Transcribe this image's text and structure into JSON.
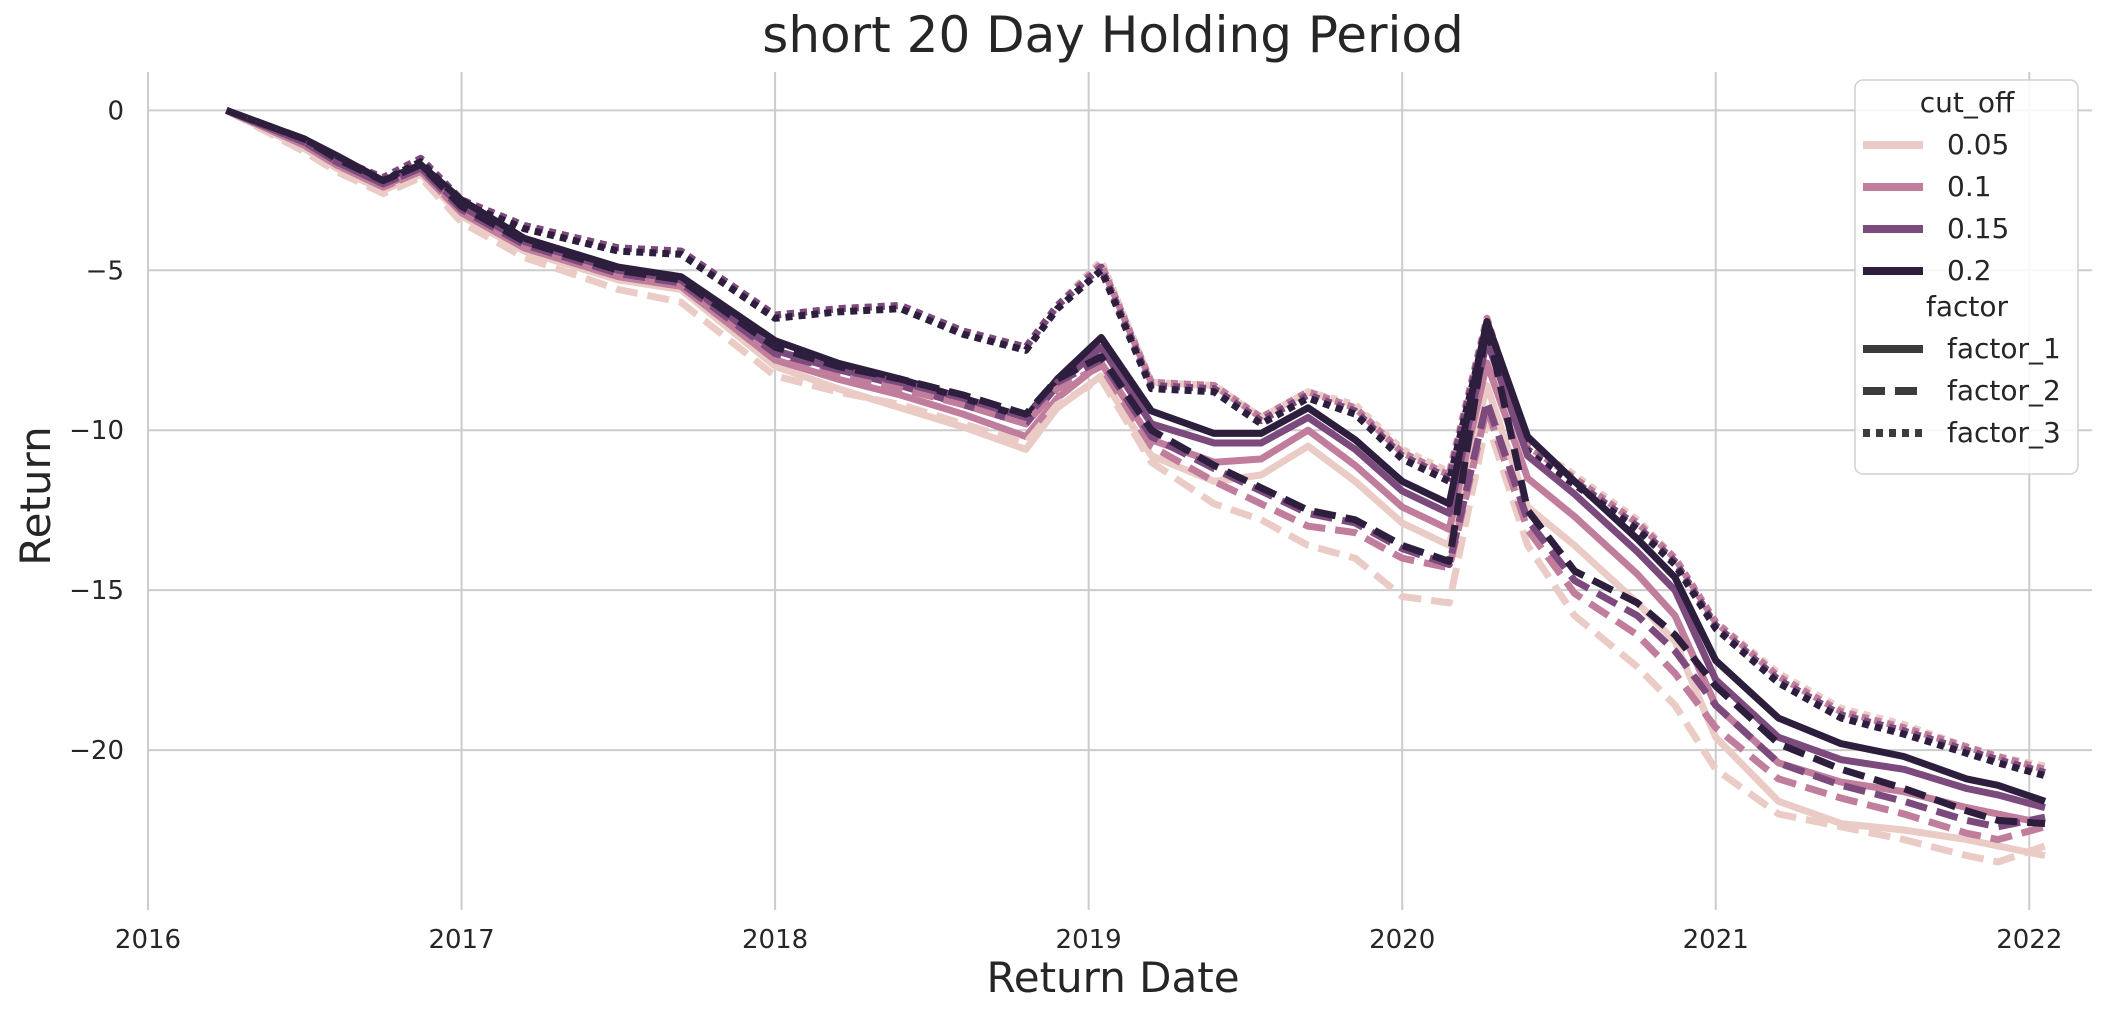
{
  "chart_data": {
    "type": "line",
    "title": "short 20 Day Holding Period",
    "xlabel": "Return Date",
    "ylabel": "Return",
    "x_ticks": [
      "2016",
      "2017",
      "2018",
      "2019",
      "2020",
      "2021",
      "2022"
    ],
    "y_ticks": [
      0,
      -5,
      -10,
      -15,
      -20
    ],
    "y_tick_labels": [
      "0",
      "−5",
      "−10",
      "−15",
      "−20"
    ],
    "xlim": [
      2016.0,
      2022.2
    ],
    "ylim": [
      -25.0,
      1.2
    ],
    "grid": true,
    "legend_position": "top-right",
    "hue": {
      "title": "cut_off",
      "levels": [
        "0.05",
        "0.1",
        "0.15",
        "0.2"
      ],
      "colors": [
        "#eacbc5",
        "#c07d9c",
        "#7c4a7d",
        "#2d1e3e"
      ]
    },
    "style": {
      "title": "factor",
      "levels": [
        "factor_1",
        "factor_2",
        "factor_3"
      ],
      "dashes": [
        "solid",
        "dashed",
        "dotted"
      ]
    },
    "dates": [
      2016.25,
      2016.5,
      2016.6,
      2016.75,
      2016.87,
      2017.0,
      2017.2,
      2017.5,
      2017.7,
      2018.0,
      2018.2,
      2018.4,
      2018.6,
      2018.8,
      2018.9,
      2019.04,
      2019.2,
      2019.4,
      2019.55,
      2019.7,
      2019.85,
      2020.0,
      2020.15,
      2020.27,
      2020.4,
      2020.55,
      2020.75,
      2020.87,
      2021.0,
      2021.2,
      2021.4,
      2021.6,
      2021.8,
      2021.9,
      2022.05
    ],
    "series": [
      {
        "cut_off": "0.05",
        "factor": "factor_1",
        "values": [
          0,
          -1.2,
          -1.8,
          -2.5,
          -2.0,
          -3.3,
          -4.4,
          -5.3,
          -5.6,
          -8.0,
          -8.7,
          -9.3,
          -9.9,
          -10.6,
          -9.3,
          -8.3,
          -10.8,
          -11.6,
          -11.4,
          -10.5,
          -11.6,
          -12.9,
          -13.6,
          -8.6,
          -12.4,
          -13.6,
          -15.4,
          -16.6,
          -19.6,
          -21.6,
          -22.3,
          -22.5,
          -22.8,
          -23.0,
          -23.3
        ]
      },
      {
        "cut_off": "0.1",
        "factor": "factor_1",
        "values": [
          0,
          -1.1,
          -1.7,
          -2.4,
          -1.9,
          -3.2,
          -4.3,
          -5.2,
          -5.5,
          -7.8,
          -8.4,
          -8.9,
          -9.5,
          -10.2,
          -9.0,
          -7.9,
          -10.3,
          -11.0,
          -10.9,
          -10.0,
          -11.1,
          -12.4,
          -13.1,
          -7.9,
          -11.5,
          -12.7,
          -14.5,
          -15.8,
          -18.6,
          -20.4,
          -21.0,
          -21.3,
          -21.8,
          -22.0,
          -22.3
        ]
      },
      {
        "cut_off": "0.15",
        "factor": "factor_1",
        "values": [
          0,
          -1.0,
          -1.6,
          -2.3,
          -1.8,
          -3.0,
          -4.1,
          -5.0,
          -5.3,
          -7.5,
          -8.1,
          -8.6,
          -9.2,
          -9.8,
          -8.6,
          -7.4,
          -9.8,
          -10.4,
          -10.4,
          -9.6,
          -10.6,
          -11.9,
          -12.6,
          -7.2,
          -10.8,
          -12.0,
          -13.8,
          -15.0,
          -17.8,
          -19.6,
          -20.3,
          -20.6,
          -21.2,
          -21.4,
          -21.8
        ]
      },
      {
        "cut_off": "0.2",
        "factor": "factor_1",
        "values": [
          0,
          -0.9,
          -1.4,
          -2.2,
          -1.7,
          -2.8,
          -4.0,
          -4.9,
          -5.2,
          -7.2,
          -7.9,
          -8.4,
          -9.0,
          -9.6,
          -8.4,
          -7.1,
          -9.4,
          -10.1,
          -10.1,
          -9.3,
          -10.3,
          -11.6,
          -12.3,
          -6.6,
          -10.2,
          -11.6,
          -13.4,
          -14.6,
          -17.2,
          -19.0,
          -19.8,
          -20.2,
          -20.9,
          -21.1,
          -21.6
        ]
      },
      {
        "cut_off": "0.05",
        "factor": "factor_2",
        "values": [
          0,
          -1.3,
          -1.9,
          -2.6,
          -2.1,
          -3.5,
          -4.6,
          -5.6,
          -6.0,
          -8.3,
          -8.8,
          -9.2,
          -9.8,
          -10.4,
          -9.2,
          -8.4,
          -11.0,
          -12.3,
          -12.8,
          -13.6,
          -14.0,
          -15.2,
          -15.4,
          -9.7,
          -13.6,
          -15.8,
          -17.4,
          -18.6,
          -20.6,
          -22.0,
          -22.4,
          -22.8,
          -23.3,
          -23.5,
          -23.0
        ]
      },
      {
        "cut_off": "0.1",
        "factor": "factor_2",
        "values": [
          0,
          -1.1,
          -1.7,
          -2.4,
          -1.9,
          -3.2,
          -4.3,
          -5.2,
          -5.5,
          -7.8,
          -8.3,
          -8.7,
          -9.2,
          -9.8,
          -8.7,
          -8.0,
          -10.5,
          -11.6,
          -12.3,
          -13.0,
          -13.2,
          -14.0,
          -14.3,
          -9.3,
          -13.1,
          -15.1,
          -16.4,
          -17.6,
          -19.3,
          -20.9,
          -21.5,
          -22.0,
          -22.6,
          -22.8,
          -22.4
        ]
      },
      {
        "cut_off": "0.15",
        "factor": "factor_2",
        "values": [
          0,
          -1.0,
          -1.6,
          -2.3,
          -1.8,
          -3.1,
          -4.2,
          -5.1,
          -5.4,
          -7.6,
          -8.1,
          -8.5,
          -9.0,
          -9.6,
          -8.5,
          -7.8,
          -10.2,
          -11.2,
          -11.9,
          -12.6,
          -12.9,
          -13.7,
          -14.2,
          -9.1,
          -12.8,
          -14.7,
          -15.8,
          -16.9,
          -18.6,
          -20.4,
          -21.1,
          -21.6,
          -22.2,
          -22.4,
          -22.1
        ]
      },
      {
        "cut_off": "0.2",
        "factor": "factor_2",
        "values": [
          0,
          -0.9,
          -1.5,
          -2.2,
          -1.7,
          -3.0,
          -4.1,
          -5.0,
          -5.3,
          -7.4,
          -8.0,
          -8.4,
          -8.9,
          -9.5,
          -8.4,
          -7.7,
          -10.0,
          -11.1,
          -11.8,
          -12.5,
          -12.8,
          -13.6,
          -14.1,
          -6.7,
          -12.5,
          -14.4,
          -15.4,
          -16.4,
          -18.0,
          -19.8,
          -20.6,
          -21.2,
          -21.9,
          -22.2,
          -22.3
        ]
      },
      {
        "cut_off": "0.05",
        "factor": "factor_3",
        "values": [
          0,
          -1.0,
          -1.5,
          -2.1,
          -1.5,
          -2.8,
          -3.6,
          -4.3,
          -4.4,
          -6.4,
          -6.2,
          -6.1,
          -6.9,
          -7.4,
          -6.1,
          -4.7,
          -8.5,
          -8.6,
          -9.6,
          -8.8,
          -9.2,
          -10.6,
          -11.3,
          -6.5,
          -10.4,
          -11.4,
          -12.8,
          -14.0,
          -16.0,
          -17.6,
          -18.7,
          -19.2,
          -19.9,
          -20.2,
          -20.5
        ]
      },
      {
        "cut_off": "0.1",
        "factor": "factor_3",
        "values": [
          0,
          -1.0,
          -1.5,
          -2.1,
          -1.5,
          -2.8,
          -3.6,
          -4.3,
          -4.4,
          -6.4,
          -6.2,
          -6.1,
          -6.9,
          -7.4,
          -6.1,
          -4.8,
          -8.5,
          -8.6,
          -9.6,
          -8.8,
          -9.3,
          -10.7,
          -11.4,
          -6.5,
          -10.5,
          -11.5,
          -12.9,
          -14.0,
          -16.0,
          -17.7,
          -18.8,
          -19.3,
          -19.9,
          -20.2,
          -20.6
        ]
      },
      {
        "cut_off": "0.15",
        "factor": "factor_3",
        "values": [
          0,
          -1.0,
          -1.5,
          -2.1,
          -1.5,
          -2.8,
          -3.6,
          -4.3,
          -4.4,
          -6.4,
          -6.2,
          -6.1,
          -6.9,
          -7.4,
          -6.1,
          -4.9,
          -8.6,
          -8.7,
          -9.7,
          -8.9,
          -9.4,
          -10.8,
          -11.5,
          -6.6,
          -10.6,
          -11.6,
          -13.0,
          -14.1,
          -16.1,
          -17.8,
          -18.9,
          -19.4,
          -20.0,
          -20.3,
          -20.7
        ]
      },
      {
        "cut_off": "0.2",
        "factor": "factor_3",
        "values": [
          0,
          -1.0,
          -1.6,
          -2.2,
          -1.6,
          -2.9,
          -3.7,
          -4.4,
          -4.5,
          -6.5,
          -6.3,
          -6.2,
          -7.0,
          -7.5,
          -6.2,
          -5.0,
          -8.7,
          -8.8,
          -9.8,
          -9.0,
          -9.5,
          -10.9,
          -11.6,
          -6.7,
          -10.7,
          -11.7,
          -13.1,
          -14.2,
          -16.2,
          -17.9,
          -19.0,
          -19.5,
          -20.1,
          -20.4,
          -20.8
        ]
      }
    ]
  }
}
